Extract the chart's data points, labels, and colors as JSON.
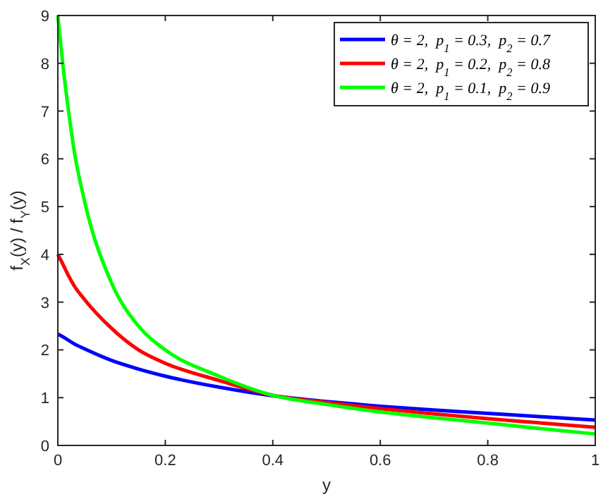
{
  "chart_data": {
    "type": "line",
    "xlabel": "y",
    "ylabel": "f$_{X}$(y) / f$_{Y}$(y)",
    "x": [
      0,
      0.01,
      0.02,
      0.03,
      0.05,
      0.1,
      0.15,
      0.2,
      0.3,
      0.4,
      0.5,
      0.6,
      0.7,
      0.8,
      0.9,
      1
    ],
    "series": [
      {
        "name": "θ = 2,  p$_{1}$ = 0.3,  p$_{2}$ = 0.7",
        "color": "#0000ff",
        "values": [
          2.33,
          2.27,
          2.2,
          2.13,
          2.02,
          1.78,
          1.6,
          1.45,
          1.22,
          1.04,
          0.92,
          0.82,
          0.74,
          0.67,
          0.6,
          0.53
        ]
      },
      {
        "name": "θ = 2,  p$_{1}$ = 0.2,  p$_{2}$ = 0.8",
        "color": "#ff0000",
        "values": [
          4,
          3.78,
          3.55,
          3.35,
          3.05,
          2.45,
          2.0,
          1.72,
          1.36,
          1.05,
          0.9,
          0.77,
          0.66,
          0.56,
          0.47,
          0.38
        ]
      },
      {
        "name": "θ = 2,  p$_{1}$ = 0.1,  p$_{2}$ = 0.9",
        "color": "#00ff00",
        "values": [
          9,
          7.9,
          7.0,
          6.2,
          5.1,
          3.4,
          2.5,
          2.0,
          1.45,
          1.05,
          0.86,
          0.7,
          0.58,
          0.47,
          0.35,
          0.24
        ]
      }
    ],
    "xlim": [
      0,
      1
    ],
    "xticks": [
      0,
      0.2,
      0.4,
      0.6,
      0.8,
      1
    ],
    "ylim": [
      0,
      9
    ],
    "yticks": [
      0,
      1,
      2,
      3,
      4,
      5,
      6,
      7,
      8,
      9
    ],
    "grid": false,
    "legend": "top right",
    "marker": "none",
    "line_style": "solid"
  }
}
